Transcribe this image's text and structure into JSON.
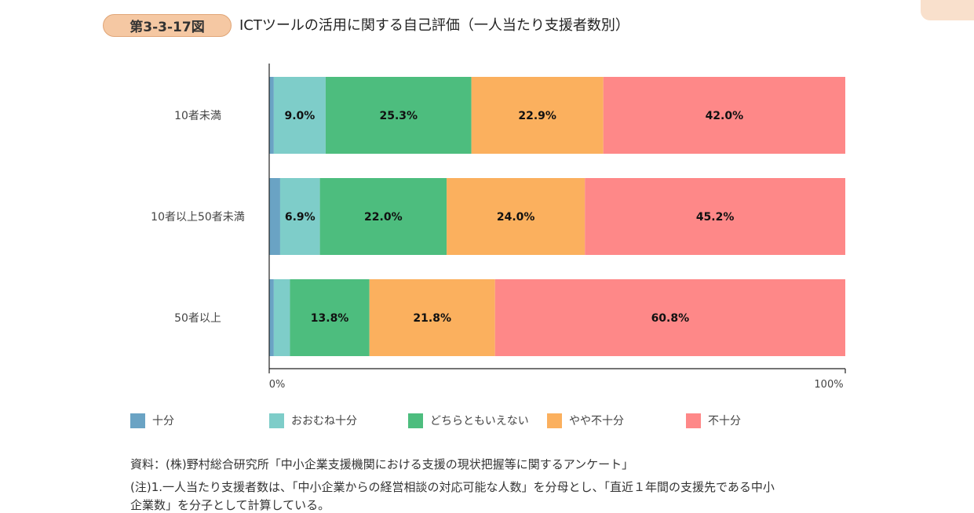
{
  "header": {
    "badge": "第3-3-17図",
    "title": "ICTツールの活用に関する自己評価（一人当たり支援者数別）"
  },
  "chart_data": {
    "type": "bar",
    "orientation": "horizontal",
    "stacked": true,
    "percent_stacked": true,
    "categories": [
      "10者未満",
      "10者以上50者未満",
      "50者以上"
    ],
    "series": [
      {
        "name": "十分",
        "values": [
          0.8,
          1.9,
          0.8
        ],
        "color": "#6aa3c4",
        "labels": [
          "",
          "",
          ""
        ]
      },
      {
        "name": "おおむね十分",
        "values": [
          9.0,
          6.9,
          2.8
        ],
        "color": "#7ecdc9",
        "labels": [
          "9.0%",
          "6.9%",
          ""
        ]
      },
      {
        "name": "どちらともいえない",
        "values": [
          25.3,
          22.0,
          13.8
        ],
        "color": "#4dbd7e",
        "labels": [
          "25.3%",
          "22.0%",
          "13.8%"
        ]
      },
      {
        "name": "やや不十分",
        "values": [
          22.9,
          24.0,
          21.8
        ],
        "color": "#fbb05e",
        "labels": [
          "22.9%",
          "24.0%",
          "21.8%"
        ]
      },
      {
        "name": "不十分",
        "values": [
          42.0,
          45.2,
          60.8
        ],
        "color": "#fe8888",
        "labels": [
          "42.0%",
          "45.2%",
          "60.8%"
        ]
      }
    ],
    "xlim": [
      0,
      100
    ],
    "xticks": [
      "0%",
      "100%"
    ],
    "legend_position": "bottom",
    "grid": false
  },
  "notes": {
    "source": "資料：(株)野村総合研究所「中小企業支援機関における支援の現状把握等に関するアンケート」",
    "note1_line1": "(注)1.一人当たり支援者数は、「中小企業からの経営相談の対応可能な人数」を分母とし、「直近１年間の支援先である中小",
    "note1_line2": "企業数」を分子として計算している。"
  }
}
